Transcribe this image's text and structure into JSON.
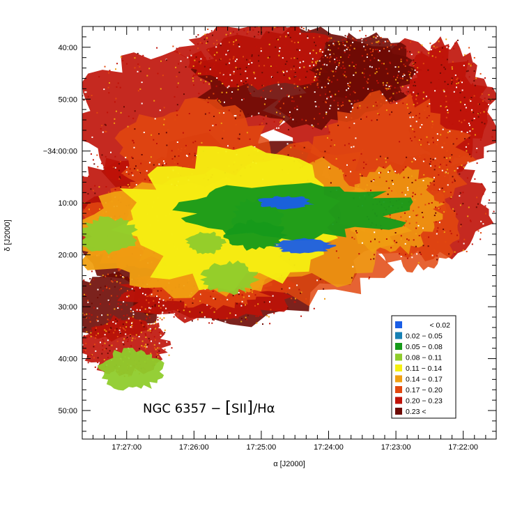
{
  "chart_data": {
    "type": "heatmap",
    "title": {
      "prefix": "NGC 6357 − ",
      "open_bracket": "[",
      "ion": "SII",
      "close_bracket": "]",
      "suffix": "/Hα"
    },
    "xlabel": "α [J2000]",
    "ylabel": "δ [J2000]",
    "x_axis": {
      "unit": "right ascension (hours)",
      "reversed": true,
      "range": [
        17.461,
        17.3585
      ],
      "ticks": [
        {
          "value": 17.45,
          "label": "17:27:00"
        },
        {
          "value": 17.43333,
          "label": "17:26:00"
        },
        {
          "value": 17.41667,
          "label": "17:25:00"
        },
        {
          "value": 17.4,
          "label": "17:24:00"
        },
        {
          "value": 17.38333,
          "label": "17:23:00"
        },
        {
          "value": 17.36667,
          "label": "17:22:00"
        }
      ]
    },
    "y_axis": {
      "unit": "declination (degrees)",
      "range": [
        -33.6,
        -34.925
      ],
      "ticks": [
        {
          "value": -33.66667,
          "label": "40:00"
        },
        {
          "value": -33.83333,
          "label": "50:00"
        },
        {
          "value": -34.0,
          "label": "−34:00:00"
        },
        {
          "value": -34.16667,
          "label": "10:00"
        },
        {
          "value": -34.33333,
          "label": "20:00"
        },
        {
          "value": -34.5,
          "label": "30:00"
        },
        {
          "value": -34.66667,
          "label": "40:00"
        },
        {
          "value": -34.83333,
          "label": "50:00"
        }
      ]
    },
    "color_scale": [
      {
        "label": "< 0.02",
        "min": null,
        "max": 0.02,
        "color": "#1a5ee6"
      },
      {
        "label": "0.02 − 0.05",
        "min": 0.02,
        "max": 0.05,
        "color": "#1780b4"
      },
      {
        "label": "0.05 − 0.08",
        "min": 0.05,
        "max": 0.08,
        "color": "#169a1a"
      },
      {
        "label": "0.08 − 0.11",
        "min": 0.08,
        "max": 0.11,
        "color": "#8fcc2c"
      },
      {
        "label": "0.11 − 0.14",
        "min": 0.11,
        "max": 0.14,
        "color": "#f5ef12"
      },
      {
        "label": "0.14 − 0.17",
        "min": 0.14,
        "max": 0.17,
        "color": "#f0a012"
      },
      {
        "label": "0.17 − 0.20",
        "min": 0.17,
        "max": 0.2,
        "color": "#e2480f"
      },
      {
        "label": "0.20 − 0.23",
        "min": 0.2,
        "max": 0.23,
        "color": "#bf1208"
      },
      {
        "label": "0.23 <",
        "min": 0.23,
        "max": null,
        "color": "#6e0a04"
      }
    ],
    "legend_position": "bottom-right",
    "regions": [
      {
        "cx": 17.4085,
        "cy": -34.19,
        "rx": 0.0275,
        "ry": 0.085,
        "level": 0.07
      },
      {
        "cx": 17.4175,
        "cy": -34.21,
        "rx": 0.006,
        "ry": 0.055,
        "level": 0.09
      },
      {
        "cx": 17.4108,
        "cy": -34.165,
        "rx": 0.0065,
        "ry": 0.02,
        "level": 0.01
      },
      {
        "cx": 17.406,
        "cy": -34.305,
        "rx": 0.007,
        "ry": 0.022,
        "level": 0.015
      },
      {
        "cx": 17.418,
        "cy": -34.27,
        "rx": 0.007,
        "ry": 0.045,
        "level": 0.06
      },
      {
        "cx": 17.4245,
        "cy": -34.405,
        "rx": 0.0065,
        "ry": 0.05,
        "level": 0.085
      },
      {
        "cx": 17.4545,
        "cy": -34.27,
        "rx": 0.0068,
        "ry": 0.055,
        "level": 0.09
      },
      {
        "cx": 17.4305,
        "cy": -34.295,
        "rx": 0.0045,
        "ry": 0.035,
        "level": 0.1
      },
      {
        "cx": 17.4485,
        "cy": -34.7,
        "rx": 0.0075,
        "ry": 0.065,
        "level": 0.09
      },
      {
        "cx": 17.4235,
        "cy": -34.22,
        "rx": 0.027,
        "ry": 0.21,
        "level": 0.13
      },
      {
        "cx": 17.434,
        "cy": -34.275,
        "rx": 0.0275,
        "ry": 0.18,
        "level": 0.16
      }
    ]
  }
}
